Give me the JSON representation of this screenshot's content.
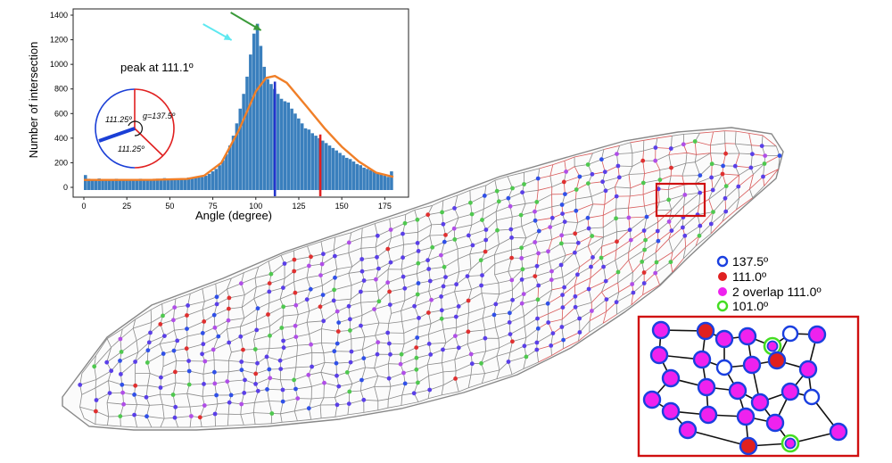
{
  "chart_data": {
    "type": "bar",
    "xlabel": "Angle (degree)",
    "ylabel": "Number of intersection",
    "xlim": [
      0,
      180
    ],
    "ylim": [
      0,
      1400
    ],
    "xticks": [
      "0",
      "25",
      "50",
      "75",
      "100",
      "125",
      "150",
      "175"
    ],
    "yticks": [
      "0",
      "200",
      "400",
      "600",
      "800",
      "1000",
      "1200",
      "1400"
    ],
    "annotation": "peak at  111.1º",
    "bar_color": "#3a7fbd",
    "fit_color": "#f07f28",
    "bins_x": [
      0,
      2,
      4,
      6,
      8,
      10,
      12,
      14,
      16,
      18,
      20,
      22,
      24,
      26,
      28,
      30,
      32,
      34,
      36,
      38,
      40,
      42,
      44,
      46,
      48,
      50,
      52,
      54,
      56,
      58,
      60,
      62,
      64,
      66,
      68,
      70,
      72,
      74,
      76,
      78,
      80,
      82,
      84,
      86,
      88,
      90,
      92,
      94,
      96,
      98,
      100,
      102,
      104,
      106,
      108,
      110,
      112,
      114,
      116,
      118,
      120,
      122,
      124,
      126,
      128,
      130,
      132,
      134,
      136,
      138,
      140,
      142,
      144,
      146,
      148,
      150,
      152,
      154,
      156,
      158,
      160,
      162,
      164,
      166,
      168,
      170,
      172,
      174,
      176,
      178
    ],
    "counts": [
      100,
      70,
      65,
      60,
      72,
      68,
      55,
      65,
      60,
      70,
      58,
      62,
      66,
      60,
      64,
      58,
      70,
      62,
      66,
      60,
      64,
      70,
      62,
      75,
      68,
      72,
      66,
      70,
      74,
      68,
      80,
      72,
      78,
      90,
      84,
      95,
      110,
      130,
      150,
      180,
      220,
      270,
      340,
      420,
      520,
      640,
      760,
      900,
      1080,
      1250,
      1330,
      1150,
      980,
      880,
      840,
      800,
      760,
      720,
      700,
      690,
      640,
      600,
      560,
      520,
      480,
      470,
      440,
      420,
      400,
      380,
      360,
      340,
      320,
      300,
      280,
      260,
      240,
      230,
      210,
      190,
      180,
      160,
      150,
      140,
      130,
      115,
      105,
      95,
      85,
      130
    ],
    "fit_curve": [
      [
        0,
        60
      ],
      [
        40,
        61
      ],
      [
        60,
        68
      ],
      [
        70,
        95
      ],
      [
        80,
        200
      ],
      [
        90,
        460
      ],
      [
        100,
        780
      ],
      [
        106,
        890
      ],
      [
        111.1,
        905
      ],
      [
        118,
        850
      ],
      [
        130,
        650
      ],
      [
        140,
        480
      ],
      [
        150,
        330
      ],
      [
        160,
        210
      ],
      [
        170,
        120
      ],
      [
        180,
        85
      ]
    ],
    "vlines": [
      {
        "x": 111.1,
        "color": "#2233cc"
      },
      {
        "x": 137.5,
        "color": "#e02020"
      }
    ],
    "arrows": [
      {
        "color": "#5ee8f0",
        "target_x": 88
      },
      {
        "color": "#3a9a3a",
        "target_x": 102
      }
    ]
  },
  "inset_circle": {
    "label_top": "111.25º",
    "label_bottom": "111.25º",
    "label_right": "g=137.5º",
    "blue": "#1b3fd6",
    "red": "#e02020"
  },
  "legend": [
    {
      "label": "137.5º",
      "marker": "blue-ring",
      "color": "#1a3fe0"
    },
    {
      "label": "111.0º",
      "marker": "red-dot",
      "color": "#e02020"
    },
    {
      "label": "2 overlap 111.0º",
      "marker": "magenta-dot",
      "color": "#ee22ee"
    },
    {
      "label": "101.0º",
      "marker": "green-ring",
      "color": "#44dd22"
    }
  ],
  "highlight_box_color": "#d01010"
}
